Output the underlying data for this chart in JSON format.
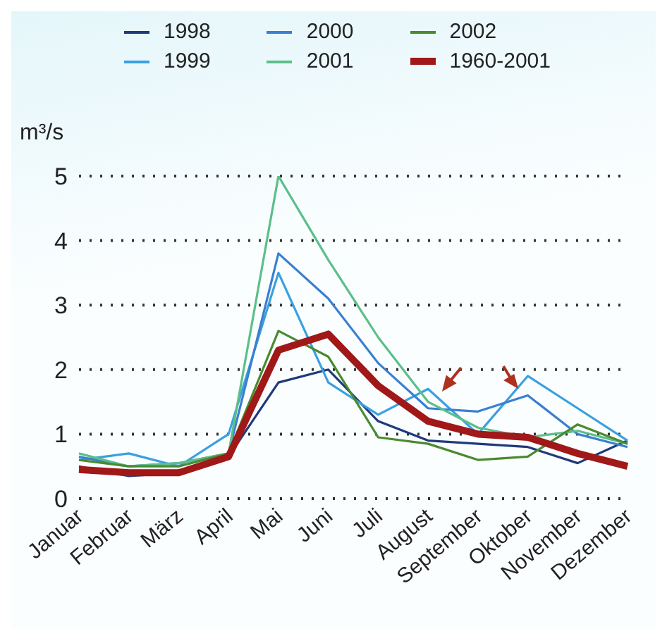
{
  "chart_data": {
    "type": "line",
    "ylabel": "m³/s",
    "categories": [
      "Januar",
      "Februar",
      "März",
      "April",
      "Mai",
      "Juni",
      "Juli",
      "August",
      "September",
      "Oktober",
      "November",
      "Dezember"
    ],
    "series": [
      {
        "name": "1998",
        "color": "#1f3a7a",
        "values": [
          0.5,
          0.35,
          0.4,
          0.65,
          1.8,
          2.0,
          1.2,
          0.9,
          0.85,
          0.8,
          0.55,
          0.9
        ]
      },
      {
        "name": "1999",
        "color": "#3aa0e0",
        "values": [
          0.6,
          0.7,
          0.5,
          1.0,
          3.5,
          1.8,
          1.3,
          1.7,
          1.0,
          1.9,
          1.4,
          0.9
        ]
      },
      {
        "name": "2000",
        "color": "#3a7fd0",
        "values": [
          0.65,
          0.5,
          0.55,
          0.7,
          3.8,
          3.1,
          2.1,
          1.4,
          1.35,
          1.6,
          1.0,
          0.8
        ]
      },
      {
        "name": "2001",
        "color": "#5cbf8a",
        "values": [
          0.7,
          0.5,
          0.55,
          0.7,
          5.0,
          3.7,
          2.5,
          1.5,
          1.1,
          0.95,
          1.05,
          0.85
        ]
      },
      {
        "name": "2002",
        "color": "#4a8a30",
        "values": [
          0.6,
          0.5,
          0.5,
          0.7,
          2.6,
          2.2,
          0.95,
          0.85,
          0.6,
          0.65,
          1.15,
          0.85
        ]
      },
      {
        "name": "1960-2001",
        "color": "#a01818",
        "values": [
          0.45,
          0.4,
          0.4,
          0.65,
          2.3,
          2.55,
          1.75,
          1.2,
          1.0,
          0.95,
          0.7,
          0.5
        ]
      }
    ],
    "ylim": [
      0,
      5
    ],
    "yticks": [
      0,
      1,
      2,
      3,
      4,
      5
    ],
    "grid": "y",
    "legend": "top",
    "marker": "none",
    "line_style": "solid"
  }
}
